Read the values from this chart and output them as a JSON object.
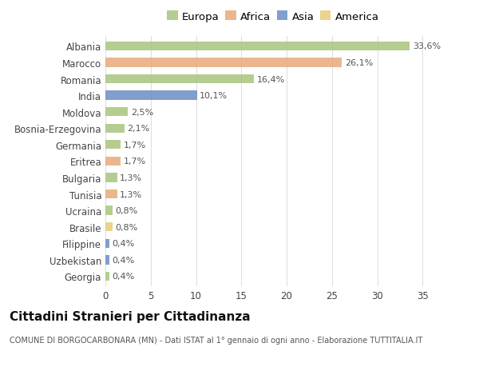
{
  "categories": [
    "Albania",
    "Marocco",
    "Romania",
    "India",
    "Moldova",
    "Bosnia-Erzegovina",
    "Germania",
    "Eritrea",
    "Bulgaria",
    "Tunisia",
    "Ucraina",
    "Brasile",
    "Filippine",
    "Uzbekistan",
    "Georgia"
  ],
  "values": [
    33.6,
    26.1,
    16.4,
    10.1,
    2.5,
    2.1,
    1.7,
    1.7,
    1.3,
    1.3,
    0.8,
    0.8,
    0.4,
    0.4,
    0.4
  ],
  "labels": [
    "33,6%",
    "26,1%",
    "16,4%",
    "10,1%",
    "2,5%",
    "2,1%",
    "1,7%",
    "1,7%",
    "1,3%",
    "1,3%",
    "0,8%",
    "0,8%",
    "0,4%",
    "0,4%",
    "0,4%"
  ],
  "continents": [
    "Europa",
    "Africa",
    "Europa",
    "Asia",
    "Europa",
    "Europa",
    "Europa",
    "Africa",
    "Europa",
    "Africa",
    "Europa",
    "America",
    "Asia",
    "Asia",
    "Europa"
  ],
  "continent_colors": {
    "Europa": "#a8c57e",
    "Africa": "#e8aa7a",
    "Asia": "#6b8dc4",
    "America": "#e8cc7a"
  },
  "legend_order": [
    "Europa",
    "Africa",
    "Asia",
    "America"
  ],
  "title": "Cittadini Stranieri per Cittadinanza",
  "subtitle": "COMUNE DI BORGOCARBONARA (MN) - Dati ISTAT al 1° gennaio di ogni anno - Elaborazione TUTTITALIA.IT",
  "xlim": [
    0,
    37
  ],
  "xticks": [
    0,
    5,
    10,
    15,
    20,
    25,
    30,
    35
  ],
  "background_color": "#ffffff",
  "grid_color": "#dddddd",
  "bar_height": 0.55,
  "label_fontsize": 8.0,
  "tick_fontsize": 8.5,
  "legend_fontsize": 9.5,
  "title_fontsize": 11,
  "subtitle_fontsize": 7.0
}
